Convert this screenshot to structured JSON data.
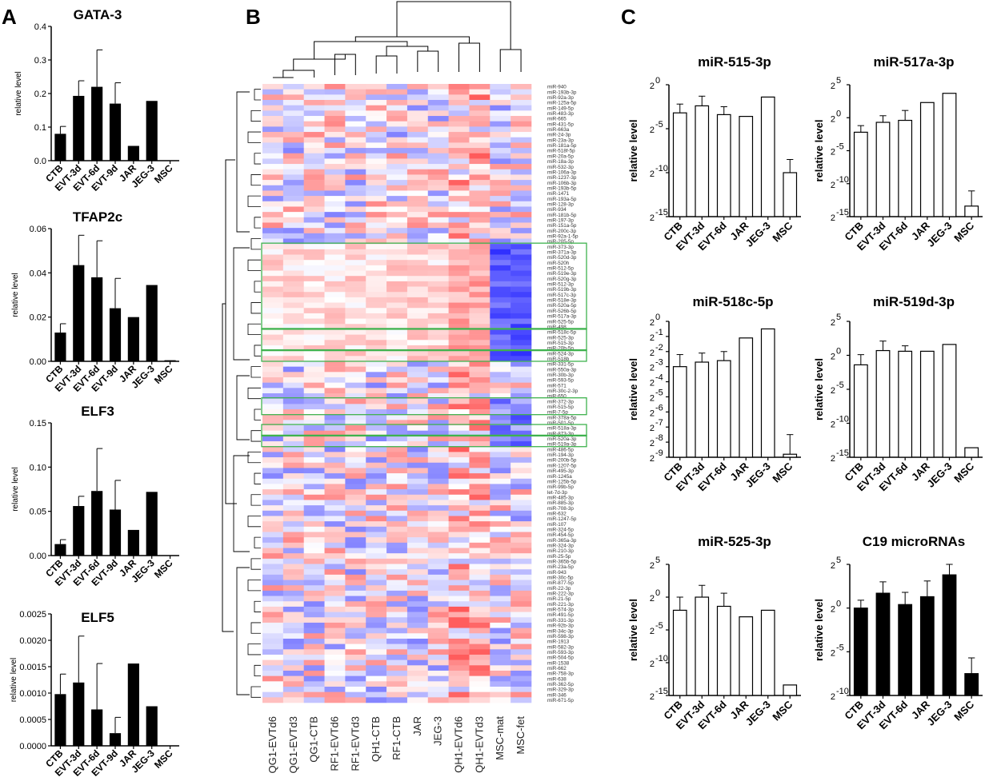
{
  "panels": {
    "a": "A",
    "b": "B",
    "c": "C"
  },
  "chart_data": [
    {
      "id": "gata3",
      "type": "bar",
      "title": "GATA-3",
      "ylabel": "relative level",
      "categories": [
        "CTB",
        "EVT-3d",
        "EVT-6d",
        "EVT-9d",
        "JAR",
        "JEG-3",
        "MSC"
      ],
      "values": [
        0.08,
        0.193,
        0.22,
        0.17,
        0.044,
        0.178,
        0.0
      ],
      "errors": [
        0.022,
        0.045,
        0.11,
        0.062,
        0,
        0,
        0
      ],
      "ylim": [
        0,
        0.4
      ],
      "ticks": [
        0.0,
        0.1,
        0.2,
        0.3,
        0.4
      ],
      "tick_labels": [
        "0.0",
        "0.1",
        "0.2",
        "0.3",
        "0.4"
      ]
    },
    {
      "id": "tfap2c",
      "type": "bar",
      "title": "TFAP2c",
      "ylabel": "relative level",
      "categories": [
        "CTB",
        "EVT-3d",
        "EVT-6d",
        "EVT-9d",
        "JAR",
        "JEG-3",
        "MSC"
      ],
      "values": [
        0.013,
        0.0435,
        0.038,
        0.024,
        0.02,
        0.0345,
        0.0005
      ],
      "errors": [
        0.004,
        0.0135,
        0.0165,
        0.0135,
        0,
        0,
        0
      ],
      "ylim": [
        0,
        0.06
      ],
      "ticks": [
        0.0,
        0.02,
        0.04,
        0.06
      ],
      "tick_labels": [
        "0.00",
        "0.02",
        "0.04",
        "0.06"
      ]
    },
    {
      "id": "elf3",
      "type": "bar",
      "title": "ELF3",
      "ylabel": "relative level",
      "categories": [
        "CTB",
        "EVT-3d",
        "EVT-6d",
        "EVT-9d",
        "JAR",
        "JEG-3",
        "MSC"
      ],
      "values": [
        0.013,
        0.056,
        0.073,
        0.052,
        0.029,
        0.072,
        0.0
      ],
      "errors": [
        0.005,
        0.011,
        0.048,
        0.033,
        0,
        0,
        0
      ],
      "ylim": [
        0,
        0.15
      ],
      "ticks": [
        0.0,
        0.05,
        0.1,
        0.15
      ],
      "tick_labels": [
        "0.00",
        "0.05",
        "0.10",
        "0.15"
      ]
    },
    {
      "id": "elf5",
      "type": "bar",
      "title": "ELF5",
      "ylabel": "relative level",
      "categories": [
        "CTB",
        "EVT-3d",
        "EVT-6d",
        "EVT-9d",
        "JAR",
        "JEG-3",
        "MSC"
      ],
      "values": [
        0.00098,
        0.0012,
        0.00069,
        0.00024,
        0.00156,
        0.00075,
        0.0
      ],
      "errors": [
        0.00038,
        0.00088,
        0.00087,
        0.0003,
        0,
        0,
        0
      ],
      "ylim": [
        0,
        0.0025
      ],
      "ticks": [
        0.0,
        0.0005,
        0.001,
        0.0015,
        0.002,
        0.0025
      ],
      "tick_labels": [
        "0.0000",
        "0.0005",
        "0.0010",
        "0.0015",
        "0.0020",
        "0.0025"
      ]
    },
    {
      "id": "mir515",
      "type": "bar",
      "scale": "log2",
      "title": "miR-515-3p",
      "ylabel": "relative level",
      "categories": [
        "CTB",
        "EVT-3d",
        "EVT-6d",
        "JAR",
        "JEG-3",
        "MSC"
      ],
      "log2_values": [
        -3.2,
        -2.4,
        -3.4,
        -3.6,
        -1.4,
        -10.0
      ],
      "log2_errors": [
        1.0,
        1.1,
        0.9,
        0,
        0,
        1.5
      ],
      "ylim_log2": [
        -15,
        0
      ],
      "ticks_log2": [
        0,
        -5,
        -10,
        -15
      ],
      "fill": "white"
    },
    {
      "id": "mir517a",
      "type": "bar",
      "scale": "log2",
      "title": "miR-517a-3p",
      "ylabel": "relative level",
      "categories": [
        "CTB",
        "EVT-3d",
        "EVT-6d",
        "JAR",
        "JEG-3",
        "MSC"
      ],
      "log2_values": [
        -2.2,
        -0.7,
        -0.4,
        2.3,
        3.7,
        -13.4
      ],
      "log2_errors": [
        1.0,
        1.0,
        1.5,
        0,
        0,
        2.3
      ],
      "ylim_log2": [
        -15,
        5
      ],
      "ticks_log2": [
        5,
        0,
        -5,
        -10,
        -15
      ],
      "fill": "white"
    },
    {
      "id": "mir518c",
      "type": "bar",
      "scale": "log2",
      "title": "miR-518c-5p",
      "ylabel": "relative level",
      "categories": [
        "CTB",
        "EVT-3d",
        "EVT-6d",
        "JAR",
        "JEG-3",
        "MSC"
      ],
      "log2_values": [
        -3.0,
        -2.7,
        -2.6,
        -1.1,
        -0.5,
        -8.8
      ],
      "log2_errors": [
        0.8,
        0.6,
        0.6,
        0,
        0,
        1.3
      ],
      "ylim_log2": [
        -9,
        0
      ],
      "ticks_log2": [
        0,
        -1,
        -2,
        -3,
        -4,
        -5,
        -6,
        -7,
        -8,
        -9
      ],
      "fill": "white"
    },
    {
      "id": "mir519d",
      "type": "bar",
      "scale": "log2",
      "title": "miR-519d-3p",
      "ylabel": "relative level",
      "categories": [
        "CTB",
        "EVT-3d",
        "EVT-6d",
        "JAR",
        "JEG-3",
        "MSC"
      ],
      "log2_values": [
        -1.4,
        0.7,
        0.6,
        0.6,
        1.6,
        -13.6
      ],
      "log2_errors": [
        1.5,
        1.4,
        0.8,
        0,
        0,
        0
      ],
      "ylim_log2": [
        -15,
        5
      ],
      "ticks_log2": [
        5,
        0,
        -5,
        -10,
        -15
      ],
      "fill": "white"
    },
    {
      "id": "mir525",
      "type": "bar",
      "scale": "log2",
      "title": "miR-525-3p",
      "ylabel": "relative level",
      "categories": [
        "CTB",
        "EVT-3d",
        "EVT-6d",
        "JAR",
        "JEG-3",
        "MSC"
      ],
      "log2_values": [
        -2.0,
        0.0,
        -1.4,
        -3.0,
        -2.0,
        -13.4
      ],
      "log2_errors": [
        2.0,
        1.8,
        2.0,
        0,
        0,
        0
      ],
      "ylim_log2": [
        -15,
        5
      ],
      "ticks_log2": [
        5,
        0,
        -5,
        -10,
        -15
      ],
      "fill": "white"
    },
    {
      "id": "c19",
      "type": "bar",
      "scale": "log2",
      "title": "C19 microRNAs",
      "ylabel": "relative level",
      "categories": [
        "CTB",
        "EVT-3d",
        "EVT-6d",
        "JAR",
        "JEG-3",
        "MSC"
      ],
      "log2_values": [
        0.0,
        1.7,
        0.4,
        1.3,
        3.8,
        -7.5
      ],
      "log2_errors": [
        0.9,
        1.3,
        1.4,
        1.8,
        1.2,
        1.8
      ],
      "ylim_log2": [
        -10,
        5
      ],
      "ticks_log2": [
        5,
        0,
        -5,
        -10
      ],
      "fill": "black"
    },
    {
      "id": "heatmap",
      "type": "heatmap",
      "columns": [
        "QG1-EVTd6",
        "QG1-EVTd3",
        "QG1-CTB",
        "RF1-EVTd6",
        "RF1-EVTd3",
        "QH1-CTB",
        "RF1-CTB",
        "JAR",
        "JEG-3",
        "QH1-EVTd6",
        "QH1-EVTd3",
        "MSC-mat",
        "MSC-fet"
      ],
      "rows": [
        "miR-940",
        "miR-193b-3p",
        "miR-92a-3p",
        "miR-125a-5p",
        "miR-149-5p",
        "miR-483-3p",
        "miR-665",
        "miR-431-5p",
        "miR-663a",
        "miR-24-3p",
        "miR-23a-3p",
        "miR-181a-5p",
        "miR-518f-5p",
        "miR-20a-5p",
        "miR-18a-3p",
        "miR-532-3p",
        "miR-106a-3p",
        "miR-1237-3p",
        "miR-106b-3p",
        "miR-193b-5p",
        "miR-1471",
        "miR-193a-5p",
        "miR-128-3p",
        "miR-934",
        "miR-181b-5p",
        "miR-197-3p",
        "miR-151a-5p",
        "miR-200c-3p",
        "miR-92a-1-5p",
        "miR-205-5p",
        "miR-373-3p",
        "miR-371a-3p",
        "miR-520d-3p",
        "miR-520h",
        "miR-512-5p",
        "miR-519e-3p",
        "miR-520g-3p",
        "miR-512-3p",
        "miR-519b-3p",
        "miR-517c-3p",
        "miR-518e-3p",
        "miR-520a-5p",
        "miR-526b-5p",
        "miR-517a-3p",
        "miR-525-5p",
        "miR-498",
        "miR-518c-5p",
        "miR-525-3p",
        "miR-515-3p",
        "miR-20b-5p",
        "miR-524-3p",
        "miR-518b",
        "miR-331-5p",
        "miR-550a-3p",
        "miR-30b-3p",
        "miR-593-5p",
        "miR-571",
        "miR-30c-2-3p",
        "miR-650",
        "miR-372-3p",
        "miR-515-5p",
        "miR-7-5p",
        "miR-378a-5p",
        "miR-501-5p",
        "miR-518a-3p",
        "miR-873-3p",
        "miR-520a-3p",
        "miR-519a-3p",
        "miR-486-5p",
        "miR-194-3p",
        "miR-200b-5p",
        "miR-1207-5p",
        "miR-495-3p",
        "miR-1245a",
        "miR-125b-5p",
        "miR-99b-5p",
        "let-7d-3p",
        "miR-485-3p",
        "miR-885-3p",
        "miR-708-3p",
        "miR-632",
        "miR-1247-5p",
        "miR-107",
        "miR-324-5p",
        "miR-454-5p",
        "miR-365a-3p",
        "miR-324-3p",
        "miR-210-3p",
        "miR-25-5p",
        "miR-365b-5p",
        "miR-23a-5p",
        "miR-943",
        "miR-30c-5p",
        "miR-877-5p",
        "miR-22-3p",
        "miR-222-3p",
        "miR-21-5p",
        "miR-221-3p",
        "miR-574-3p",
        "miR-491-5p",
        "miR-331-3p",
        "miR-92b-3p",
        "miR-34c-3p",
        "miR-598-3p",
        "miR-1913",
        "miR-582-3p",
        "miR-593-3p",
        "miR-504-5p",
        "miR-1538",
        "miR-662",
        "miR-758-3p",
        "miR-638",
        "miR-362-5p",
        "miR-329-3p",
        "miR-346",
        "miR-671-5p"
      ]
    }
  ]
}
